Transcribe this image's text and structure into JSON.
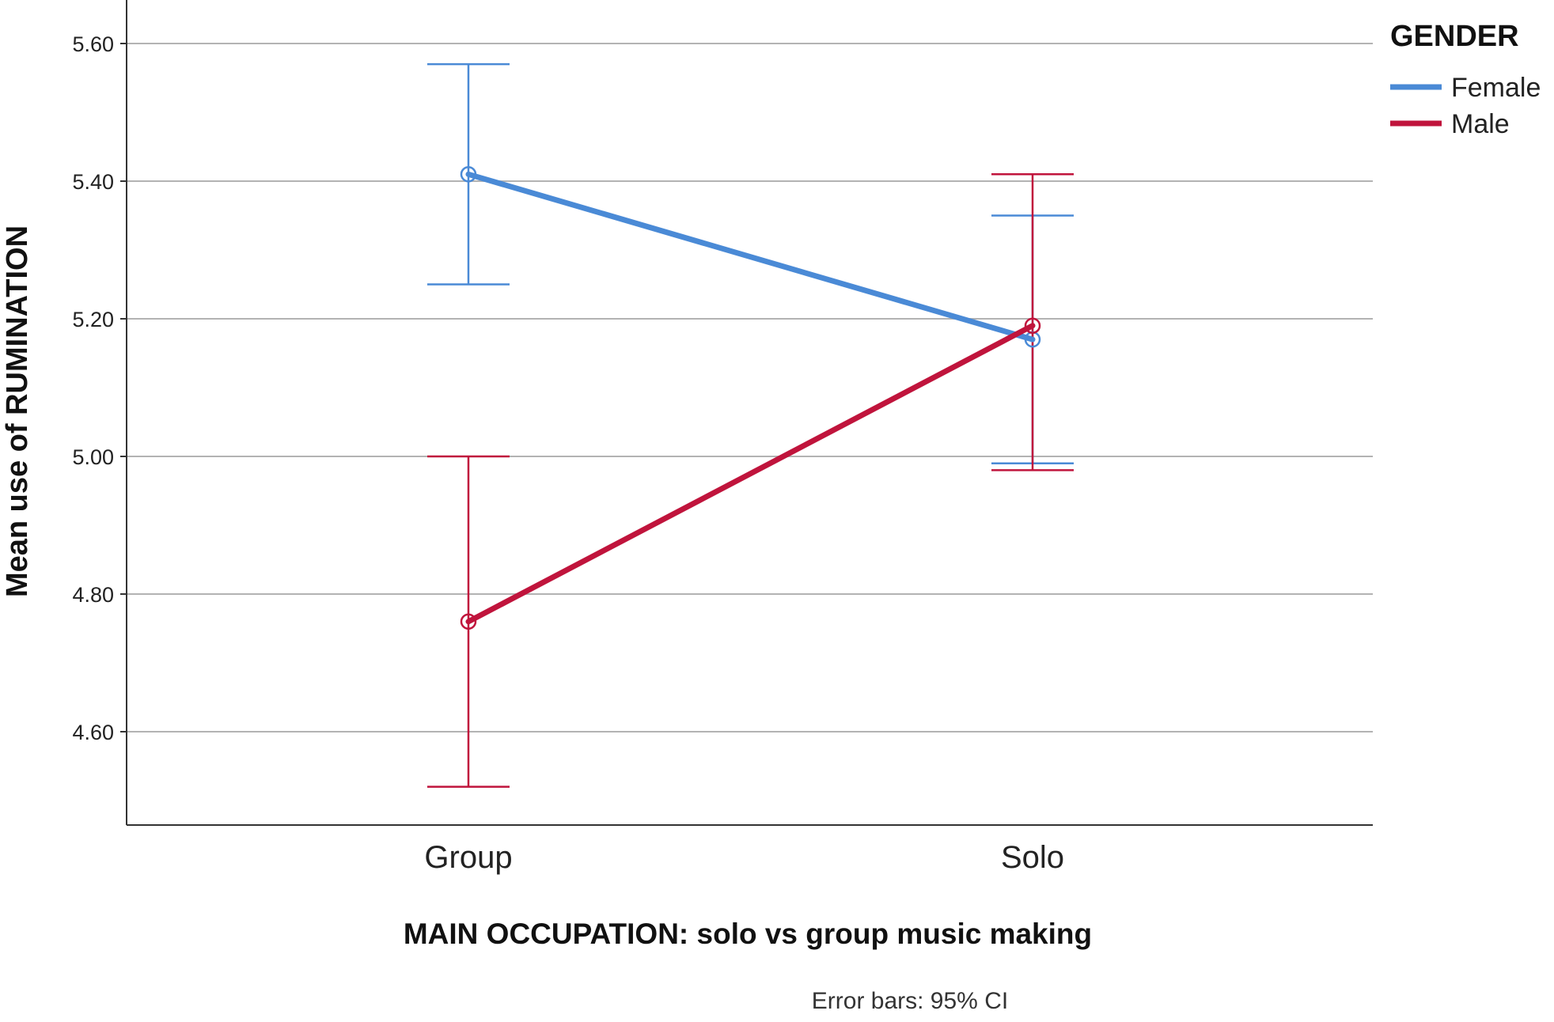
{
  "chart_data": {
    "type": "line",
    "title": "",
    "xlabel": "MAIN OCCUPATION: solo vs group music making",
    "ylabel": "Mean use of RUMINATION",
    "footnote": "Error bars: 95% CI",
    "categories": [
      "Group",
      "Solo"
    ],
    "ylim": [
      4.465,
      5.6
    ],
    "yticks": [
      "4.60",
      "4.80",
      "5.00",
      "5.20",
      "5.40",
      "5.60"
    ],
    "grid": "horizontal",
    "legend": {
      "title": "GENDER",
      "position": "top-right"
    },
    "series": [
      {
        "name": "Female",
        "color": "#4a8ad6",
        "values": [
          5.41,
          5.17
        ],
        "ci_lower": [
          5.25,
          4.99
        ],
        "ci_upper": [
          5.57,
          5.35
        ]
      },
      {
        "name": "Male",
        "color": "#c0143c",
        "values": [
          4.76,
          5.19
        ],
        "ci_lower": [
          4.52,
          4.98
        ],
        "ci_upper": [
          5.0,
          5.41
        ]
      }
    ]
  }
}
